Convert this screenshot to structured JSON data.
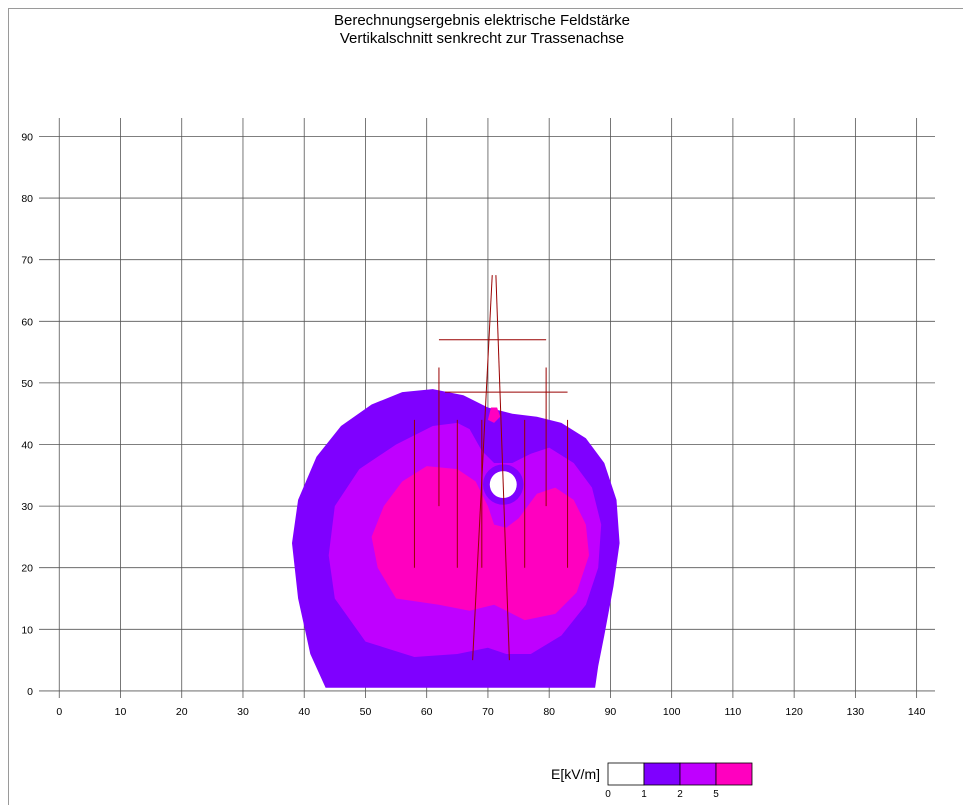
{
  "chart_data": {
    "type": "heatmap",
    "title": "Berechnungsergebnis elektrische Feldstärke",
    "subtitle": "Vertikalschnitt senkrecht zur Trassenachse",
    "xlabel": "",
    "ylabel": "",
    "x_ticks": [
      0,
      10,
      20,
      30,
      40,
      50,
      60,
      70,
      80,
      90,
      100,
      110,
      120,
      130,
      140
    ],
    "y_ticks": [
      0,
      10,
      20,
      30,
      40,
      50,
      60,
      70,
      80,
      90
    ],
    "xlim": [
      -2,
      143
    ],
    "ylim": [
      -0.5,
      93
    ],
    "grid": true,
    "legend": {
      "label": "E[kV/m]",
      "placement": "bottom-right",
      "thresholds": [
        "0",
        "1",
        "2",
        "5"
      ],
      "colors": [
        "#ffffff",
        "#7f00ff",
        "#bf00ff",
        "#ff00bf"
      ]
    },
    "contours": [
      {
        "level": "1 - 2",
        "color": "#7f00ff",
        "polygon": [
          [
            43.5,
            0.5
          ],
          [
            41,
            6
          ],
          [
            39,
            15
          ],
          [
            38,
            24
          ],
          [
            39,
            31
          ],
          [
            42,
            38
          ],
          [
            46,
            43
          ],
          [
            51,
            46.5
          ],
          [
            56,
            48.5
          ],
          [
            61,
            49
          ],
          [
            66,
            48
          ],
          [
            70,
            46
          ],
          [
            74,
            45
          ],
          [
            78,
            44.5
          ],
          [
            82,
            43.5
          ],
          [
            86,
            41
          ],
          [
            89,
            37
          ],
          [
            91,
            31
          ],
          [
            91.5,
            24
          ],
          [
            90.5,
            17
          ],
          [
            89,
            9
          ],
          [
            88,
            4
          ],
          [
            87.5,
            0.5
          ]
        ]
      },
      {
        "level": "2 - 5",
        "color": "#bf00ff",
        "polygon": [
          [
            50,
            8
          ],
          [
            45,
            15
          ],
          [
            44,
            22
          ],
          [
            45,
            30
          ],
          [
            49,
            36
          ],
          [
            55,
            40
          ],
          [
            61,
            43
          ],
          [
            65,
            43.5
          ],
          [
            67,
            42.5
          ],
          [
            69,
            39
          ],
          [
            71,
            37
          ],
          [
            74,
            37
          ],
          [
            77,
            38.5
          ],
          [
            80,
            39.5
          ],
          [
            84,
            37
          ],
          [
            87,
            33
          ],
          [
            88.5,
            27
          ],
          [
            88,
            20
          ],
          [
            86,
            14
          ],
          [
            82,
            9
          ],
          [
            77,
            6
          ],
          [
            73,
            6
          ],
          [
            70,
            7
          ],
          [
            65,
            6
          ],
          [
            58,
            5.5
          ]
        ]
      },
      {
        "level": "> 5",
        "color": "#ff00bf",
        "polygon": [
          [
            55,
            15
          ],
          [
            52,
            20
          ],
          [
            51,
            25
          ],
          [
            53,
            30
          ],
          [
            56,
            34
          ],
          [
            60,
            36.5
          ],
          [
            65,
            36
          ],
          [
            68,
            34
          ],
          [
            70,
            30
          ],
          [
            71,
            27
          ],
          [
            73,
            26.5
          ],
          [
            75,
            28
          ],
          [
            78,
            32
          ],
          [
            81,
            33
          ],
          [
            84,
            31
          ],
          [
            86,
            27
          ],
          [
            86.5,
            22
          ],
          [
            84.5,
            16
          ],
          [
            81,
            12.5
          ],
          [
            76,
            11.5
          ],
          [
            73,
            13
          ],
          [
            71,
            14
          ],
          [
            67,
            13
          ],
          [
            62,
            14
          ]
        ]
      },
      {
        "level": "> 5",
        "color": "#ff00bf",
        "polygon": [
          [
            70,
            44
          ],
          [
            70.5,
            46
          ],
          [
            71.5,
            46
          ],
          [
            72,
            44.5
          ],
          [
            71,
            43.5
          ]
        ]
      }
    ],
    "holes": [
      {
        "x": 72.5,
        "y": 33.5,
        "r": 2.2,
        "ring_color": "#7f00ff",
        "ring_r": 3.3
      }
    ],
    "structure": {
      "color": "#990000",
      "lines": [
        [
          [
            67.5,
            5
          ],
          [
            70.7,
            67.5
          ]
        ],
        [
          [
            73.5,
            5
          ],
          [
            71.3,
            67.5
          ]
        ],
        [
          [
            62,
            57
          ],
          [
            79.5,
            57
          ]
        ],
        [
          [
            63,
            48.5
          ],
          [
            83,
            48.5
          ]
        ],
        [
          [
            62,
            52.5
          ],
          [
            62,
            30
          ]
        ],
        [
          [
            79.5,
            52.5
          ],
          [
            79.5,
            30
          ]
        ],
        [
          [
            58,
            44
          ],
          [
            58,
            20
          ]
        ],
        [
          [
            65,
            44
          ],
          [
            65,
            20
          ]
        ],
        [
          [
            69,
            44
          ],
          [
            69,
            20
          ]
        ],
        [
          [
            76,
            44
          ],
          [
            76,
            20
          ]
        ],
        [
          [
            83,
            44
          ],
          [
            83,
            20
          ]
        ]
      ]
    }
  }
}
